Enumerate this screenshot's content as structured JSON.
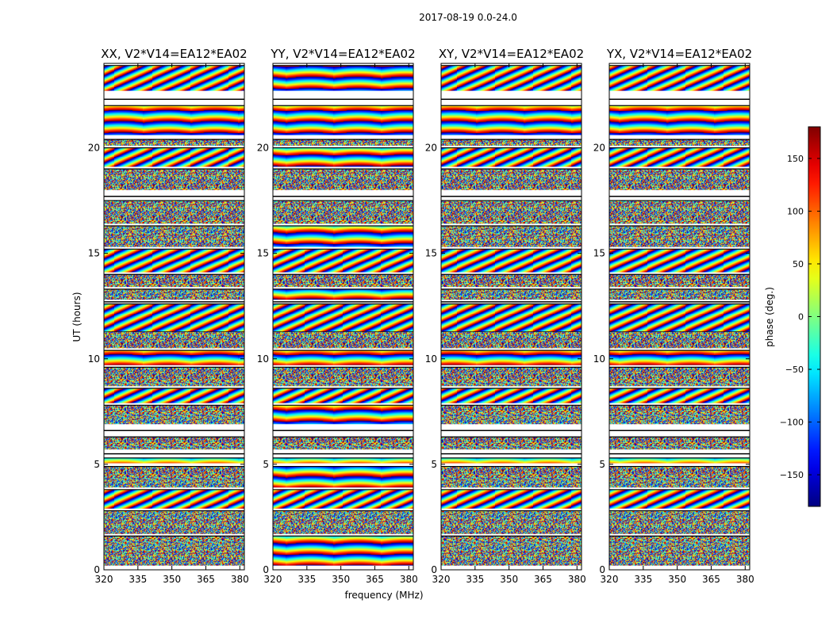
{
  "figure_title": "2017-08-19 0.0-24.0",
  "chart_data": {
    "type": "heatmap",
    "title": "2017-08-19 0.0-24.0",
    "xlabel": "frequency (MHz)",
    "ylabel": "UT (hours)",
    "xlim": [
      320,
      382
    ],
    "ylim": [
      0,
      24
    ],
    "xticks": [
      320,
      335,
      350,
      365,
      380
    ],
    "yticks": [
      0,
      5,
      10,
      15,
      20
    ],
    "colormap": "jet",
    "colorbar": {
      "label": "phase (deg.)",
      "range": [
        -180,
        180
      ],
      "ticks": [
        150,
        100,
        50,
        0,
        -50,
        -100,
        -150
      ],
      "tick_labels": [
        "150",
        "100",
        "50",
        "0",
        "−50",
        "−100",
        "−150"
      ]
    },
    "panels": [
      {
        "title": "XX, V2*V14=EA12*EA02"
      },
      {
        "title": "YY, V2*V14=EA12*EA02"
      },
      {
        "title": "XY, V2*V14=EA12*EA02"
      },
      {
        "title": "YX, V2*V14=EA12*EA02"
      }
    ]
  }
}
